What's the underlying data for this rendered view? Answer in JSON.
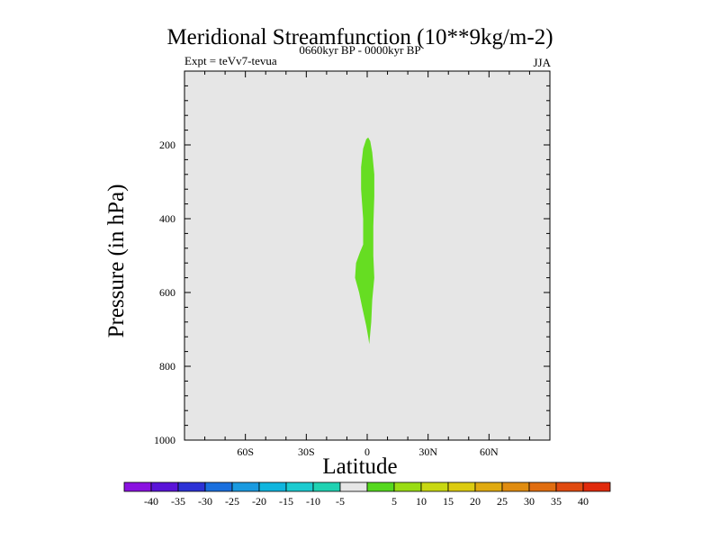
{
  "chart_data": {
    "type": "heatmap",
    "title": "Meridional Streamfunction (10**9kg/m-2)",
    "subtitle_left": "Expt = teVv7-tevua",
    "subtitle_center": "0660kyr BP - 0000kyr BP",
    "subtitle_right": "JJA",
    "xlabel": "Latitude",
    "ylabel": "Pressure (in hPa)",
    "xlim": [
      -90,
      90
    ],
    "ylim": [
      1000,
      0
    ],
    "x_ticks": [
      {
        "value": -60,
        "label": "60S"
      },
      {
        "value": -30,
        "label": "30S"
      },
      {
        "value": 0,
        "label": "0"
      },
      {
        "value": 30,
        "label": "30N"
      },
      {
        "value": 60,
        "label": "60N"
      }
    ],
    "y_ticks": [
      {
        "value": 200,
        "label": "200"
      },
      {
        "value": 400,
        "label": "400"
      },
      {
        "value": 600,
        "label": "600"
      },
      {
        "value": 800,
        "label": "800"
      },
      {
        "value": 1000,
        "label": "1000"
      }
    ],
    "background_color": "#e6e6e6",
    "regions": [
      {
        "level_range": [
          5,
          10
        ],
        "color": "#66dd22",
        "outline": [
          [
            0.5,
            180
          ],
          [
            1.5,
            190
          ],
          [
            2.5,
            220
          ],
          [
            3.5,
            280
          ],
          [
            3.5,
            340
          ],
          [
            3.0,
            420
          ],
          [
            3.0,
            500
          ],
          [
            3.5,
            560
          ],
          [
            2.5,
            620
          ],
          [
            2.0,
            680
          ],
          [
            1.0,
            740
          ],
          [
            0.5,
            720
          ],
          [
            -0.5,
            690
          ],
          [
            -2.5,
            640
          ],
          [
            -4.0,
            600
          ],
          [
            -6.0,
            560
          ],
          [
            -5.5,
            520
          ],
          [
            -3.5,
            490
          ],
          [
            -2.0,
            470
          ],
          [
            -2.0,
            400
          ],
          [
            -3.0,
            320
          ],
          [
            -3.0,
            260
          ],
          [
            -2.0,
            210
          ],
          [
            -0.5,
            185
          ]
        ]
      }
    ],
    "colorbar": {
      "colors": [
        "#8a12e0",
        "#5a14d8",
        "#2c32d6",
        "#1a6fde",
        "#1a9ae0",
        "#10b5de",
        "#1ccbd0",
        "#1fd2b2",
        "#e6e6e6",
        "#55d81e",
        "#99dc14",
        "#c8d812",
        "#dccb10",
        "#e0aa10",
        "#e08c10",
        "#e06d10",
        "#e04a10",
        "#e02a0c"
      ],
      "labels": [
        "-40",
        "-35",
        "-30",
        "-25",
        "-20",
        "-15",
        "-10",
        "-5",
        "5",
        "10",
        "15",
        "20",
        "25",
        "30",
        "35",
        "40"
      ]
    }
  }
}
